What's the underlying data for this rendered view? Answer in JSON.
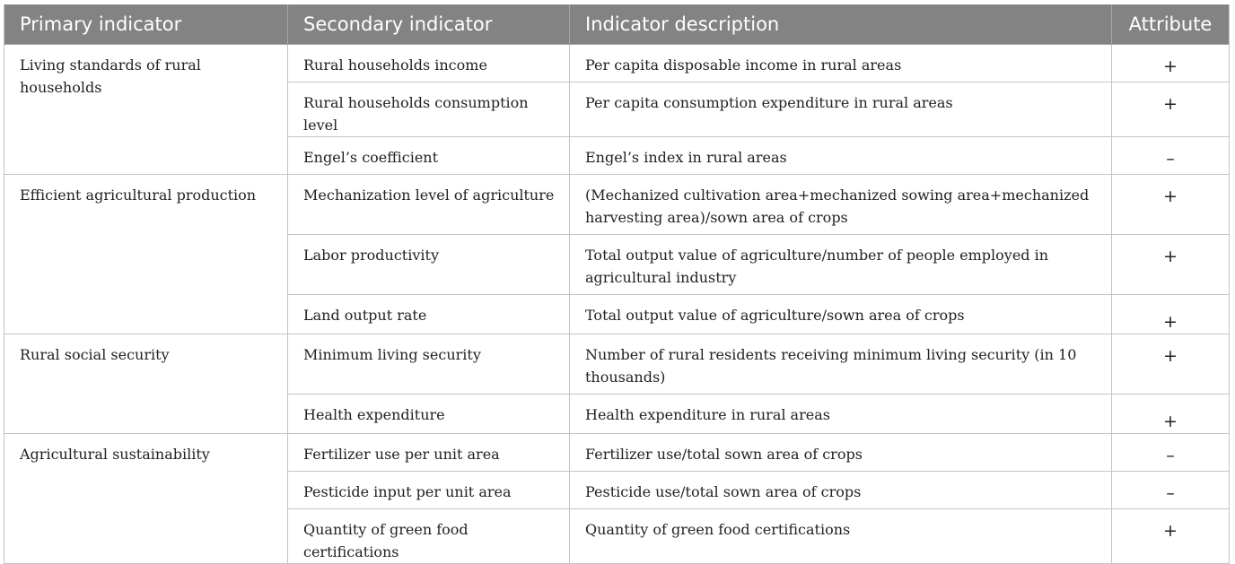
{
  "table": {
    "headers": [
      "Primary indicator",
      "Secondary indicator",
      "Indicator description",
      "Attribute"
    ],
    "groups": [
      {
        "primary": "Living standards of rural households",
        "rows": [
          {
            "secondary": "Rural households income",
            "description": "Per capita disposable income in rural areas",
            "attribute": "+"
          },
          {
            "secondary": "Rural households consumption level",
            "description": "Per capita consumption expenditure in rural areas",
            "attribute": "+"
          },
          {
            "secondary": "Engel’s coefficient",
            "description": "Engel’s index in rural areas",
            "attribute": "–"
          }
        ]
      },
      {
        "primary": "Efficient agricultural production",
        "rows": [
          {
            "secondary": "Mechanization level of agriculture",
            "description": "(Mechanized cultivation area+mechanized sowing area+mechanized harvesting area)/sown area of crops",
            "attribute": "+"
          },
          {
            "secondary": "Labor productivity",
            "description": "Total output value of agriculture/number of people employed in agricultural industry",
            "attribute": "+"
          },
          {
            "secondary": "Land output rate",
            "description": "Total output value of agriculture/sown area of crops",
            "attribute": "+"
          }
        ]
      },
      {
        "primary": "Rural social security",
        "rows": [
          {
            "secondary": "Minimum living security",
            "description": "Number of rural residents receiving minimum living security (in 10 thousands)",
            "attribute": "+"
          },
          {
            "secondary": "Health expenditure",
            "description": "Health expenditure in rural areas",
            "attribute": "+"
          }
        ]
      },
      {
        "primary": "Agricultural sustainability",
        "rows": [
          {
            "secondary": "Fertilizer use per unit area",
            "description": "Fertilizer use/total sown area of crops",
            "attribute": "–"
          },
          {
            "secondary": "Pesticide input per unit area",
            "description": "Pesticide use/total sown area of crops",
            "attribute": "–"
          },
          {
            "secondary": "Quantity of green food certifications",
            "description": "Quantity of green food certifications",
            "attribute": "+"
          }
        ]
      }
    ]
  }
}
